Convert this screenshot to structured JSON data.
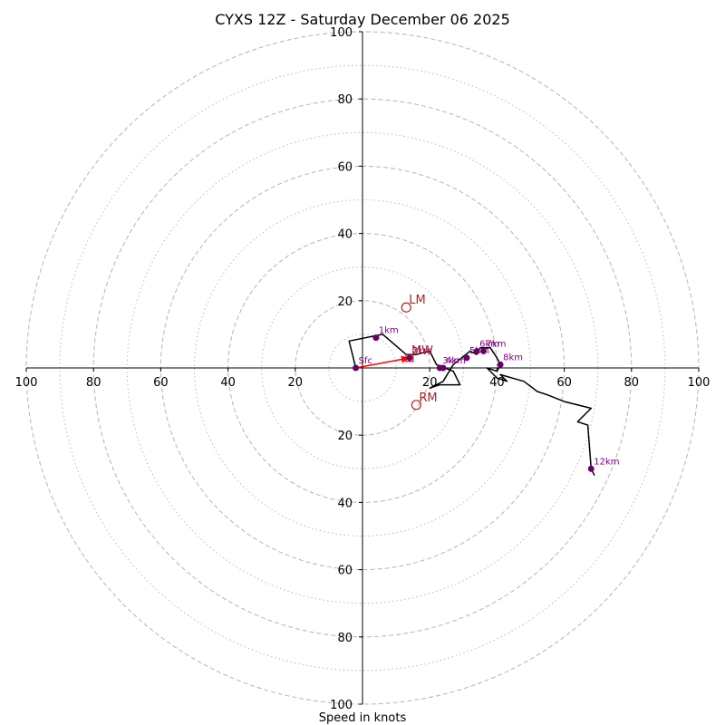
{
  "chart_data": {
    "type": "hodograph",
    "title": "CYXS 12Z - Saturday December 06 2025",
    "xlabel": "Speed in knots",
    "units": "knots",
    "range": [
      -100,
      100
    ],
    "major_rings": [
      20,
      40,
      60,
      80,
      100
    ],
    "minor_rings": [
      10,
      30,
      50,
      70,
      90
    ],
    "tick_values": [
      100,
      80,
      60,
      40,
      20
    ],
    "x_tick_labels": [
      "100",
      "80",
      "60",
      "40",
      "20",
      "20",
      "40",
      "60",
      "80",
      "100"
    ],
    "y_tick_labels": [
      "100",
      "80",
      "60",
      "40",
      "20",
      "20",
      "40",
      "60",
      "80",
      "100"
    ],
    "hodo_trace": [
      [
        -2,
        0
      ],
      [
        -4,
        8
      ],
      [
        6,
        10
      ],
      [
        13,
        4
      ],
      [
        16,
        4
      ],
      [
        20,
        5
      ],
      [
        22,
        1
      ],
      [
        27,
        -1
      ],
      [
        29,
        -5
      ],
      [
        23,
        -5
      ],
      [
        20,
        -6
      ],
      [
        24,
        -4
      ],
      [
        27,
        1
      ],
      [
        32,
        5
      ],
      [
        34,
        4
      ],
      [
        35,
        6
      ],
      [
        38,
        6
      ],
      [
        40,
        3
      ],
      [
        41,
        1
      ],
      [
        40,
        -1
      ],
      [
        37,
        0
      ],
      [
        40,
        -3
      ],
      [
        43,
        -4
      ],
      [
        41,
        -2
      ],
      [
        48,
        -4
      ],
      [
        52,
        -7
      ],
      [
        55,
        -8
      ],
      [
        60,
        -10
      ],
      [
        68,
        -12
      ],
      [
        64,
        -16
      ],
      [
        67,
        -17
      ],
      [
        68,
        -30
      ],
      [
        69,
        -32
      ]
    ],
    "height_markers": [
      {
        "label": "Sfc",
        "u": -2,
        "v": 0
      },
      {
        "label": "1km",
        "u": 4,
        "v": 9
      },
      {
        "label": "2km",
        "u": 14,
        "v": 3
      },
      {
        "label": "3km",
        "u": 23,
        "v": 0
      },
      {
        "label": "4km",
        "u": 24,
        "v": 0
      },
      {
        "label": "5km",
        "u": 31,
        "v": 3
      },
      {
        "label": "6km",
        "u": 34,
        "v": 5
      },
      {
        "label": "7km",
        "u": 36,
        "v": 5
      },
      {
        "label": "8km",
        "u": 41,
        "v": 1
      },
      {
        "label": "12km",
        "u": 68,
        "v": -30
      }
    ],
    "storm_motions": [
      {
        "label": "LM",
        "u": 13,
        "v": 18,
        "color": "#b22222"
      },
      {
        "label": "RM",
        "u": 16,
        "v": -11,
        "color": "#b22222"
      }
    ],
    "mean_wind": {
      "label": "MW",
      "u": 14,
      "v": 3,
      "color": "#b22222"
    },
    "shear_vector": {
      "from": [
        -2,
        0
      ],
      "to": [
        14,
        3
      ],
      "color": "#ff0000"
    },
    "colors": {
      "trace": "#000000",
      "marker": "#6a006a",
      "marker_label": "#800080",
      "rings": "#bbbbbb",
      "axis": "#000000"
    }
  }
}
